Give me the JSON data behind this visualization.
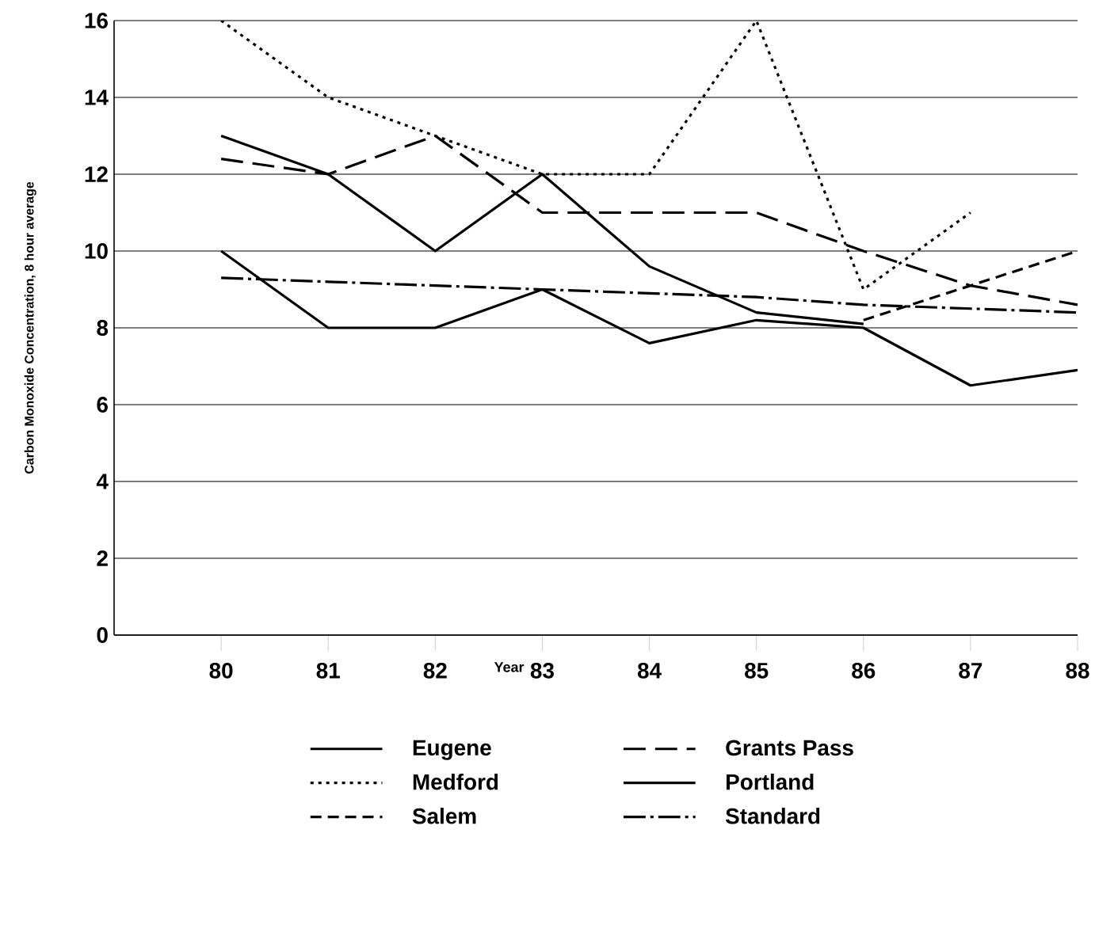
{
  "chart_data": {
    "type": "line",
    "xlabel": "Year",
    "ylabel": "Carbon Monoxide Concentration, 8 hour average",
    "x": [
      80,
      81,
      82,
      83,
      84,
      85,
      86,
      87,
      88
    ],
    "series": [
      {
        "name": "Eugene",
        "color": "#000000",
        "line_style": "solid",
        "values": [
          13,
          12,
          10,
          12,
          9.6,
          8.4,
          8.1,
          null,
          null
        ]
      },
      {
        "name": "Grants Pass",
        "color": "#000000",
        "line_style": "long dashed",
        "values": [
          12.4,
          12,
          13,
          11,
          11,
          11,
          10,
          9.1,
          8.6
        ]
      },
      {
        "name": "Medford",
        "color": "#000000",
        "line_style": "dotted",
        "values": [
          16,
          14,
          13,
          12,
          12,
          16,
          9,
          11,
          null
        ]
      },
      {
        "name": "Portland",
        "color": "#000000",
        "line_style": "solid",
        "values": [
          10,
          8,
          8,
          9,
          7.6,
          8.2,
          8,
          6.5,
          6.9
        ]
      },
      {
        "name": "Salem",
        "color": "#000000",
        "line_style": "dashed",
        "values": [
          null,
          null,
          null,
          null,
          null,
          null,
          8.2,
          9.1,
          10
        ]
      },
      {
        "name": "Standard",
        "color": "#000000",
        "line_style": "dashdot",
        "values": [
          9.3,
          9.2,
          9.1,
          9,
          8.9,
          8.8,
          8.6,
          8.5,
          8.4
        ]
      }
    ],
    "xlim": [
      79,
      88
    ],
    "xticks": [
      80,
      81,
      82,
      83,
      84,
      85,
      86,
      87,
      88
    ],
    "ylim": [
      0,
      16
    ],
    "yticks": [
      0,
      2,
      4,
      6,
      8,
      10,
      12,
      14,
      16
    ],
    "grid": "y",
    "legend": "bottom",
    "marker": "none"
  }
}
